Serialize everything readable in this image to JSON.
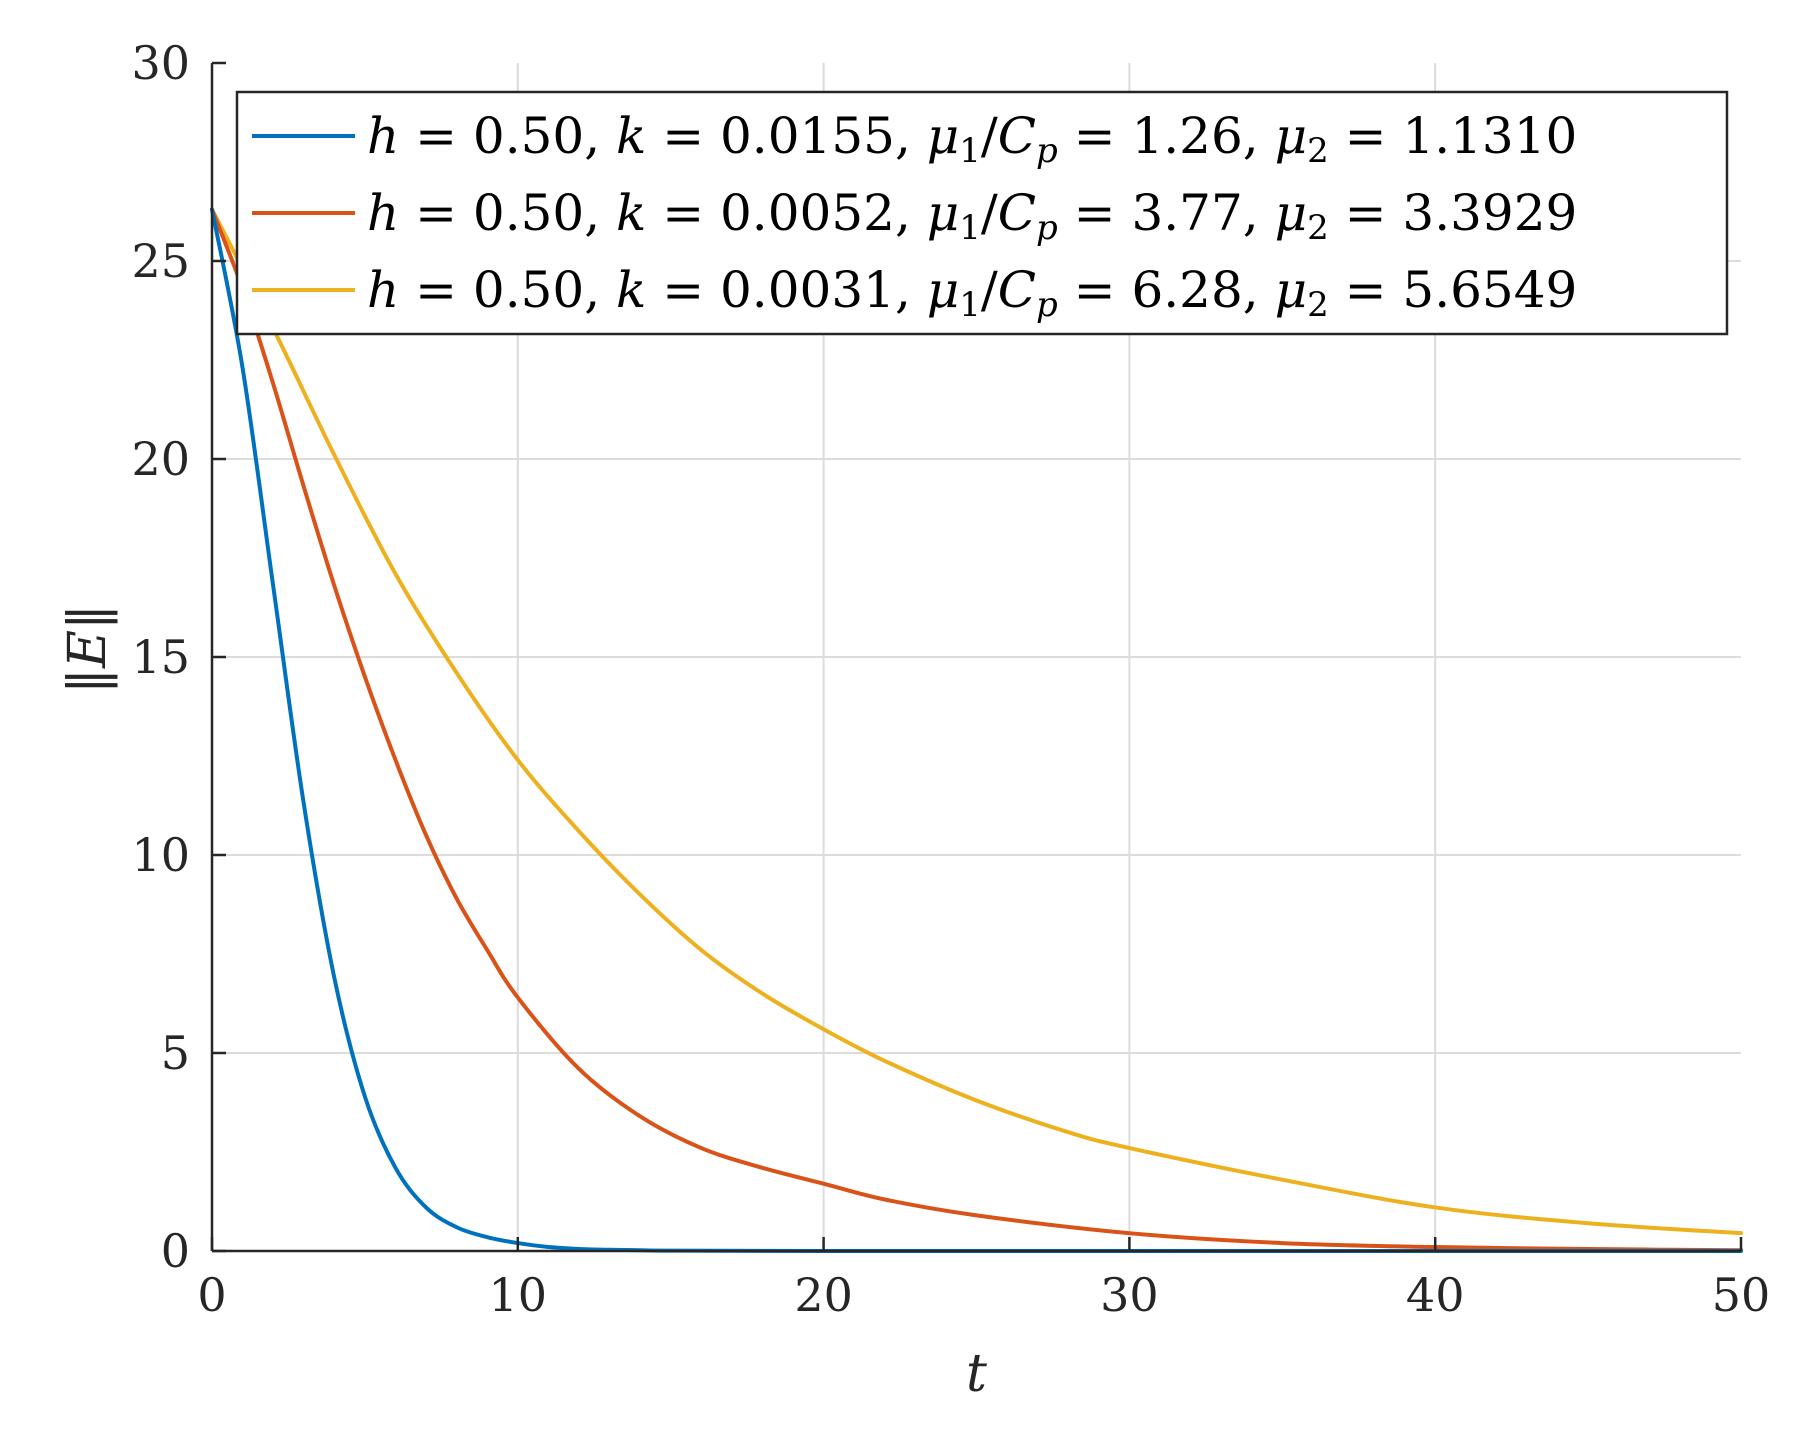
{
  "chart_data": {
    "type": "line",
    "title": "",
    "xlabel": "t",
    "ylabel": "‖E‖",
    "xlim": [
      0,
      50
    ],
    "ylim": [
      0,
      30
    ],
    "xticks": [
      0,
      10,
      20,
      30,
      40,
      50
    ],
    "yticks": [
      0,
      5,
      10,
      15,
      20,
      25,
      30
    ],
    "grid": true,
    "legend_position": "top-right",
    "series": [
      {
        "name": "h = 0.50, k = 0.0155, μ1/Cp = 1.26, μ2 = 1.1310",
        "legend": {
          "h": "0.50",
          "k": "0.0155",
          "mu1_cp": "1.26",
          "mu2": "1.1310"
        },
        "color": "#0072BD",
        "x": [
          0,
          1,
          2,
          3,
          4,
          5,
          6,
          7,
          8,
          9,
          10,
          11,
          12,
          13,
          14,
          15,
          20,
          25,
          30,
          40,
          50
        ],
        "y": [
          26.3,
          22.3,
          16.8,
          11.3,
          6.9,
          3.9,
          2.1,
          1.1,
          0.6,
          0.35,
          0.2,
          0.1,
          0.05,
          0.03,
          0.02,
          0.01,
          0,
          0,
          0,
          0,
          0
        ]
      },
      {
        "name": "h = 0.50, k = 0.0052, μ1/Cp = 3.77, μ2 = 3.3929",
        "legend": {
          "h": "0.50",
          "k": "0.0052",
          "mu1_cp": "3.77",
          "mu2": "3.3929"
        },
        "color": "#D95319",
        "x": [
          0,
          1,
          2,
          3,
          4,
          5,
          6,
          7,
          8,
          9,
          10,
          12,
          14,
          16,
          18,
          20,
          22,
          25,
          30,
          35,
          40,
          45,
          50
        ],
        "y": [
          26.3,
          24.3,
          21.9,
          19.3,
          16.8,
          14.5,
          12.4,
          10.5,
          8.9,
          7.6,
          6.4,
          4.6,
          3.4,
          2.6,
          2.1,
          1.7,
          1.3,
          0.9,
          0.45,
          0.2,
          0.1,
          0.05,
          0.02
        ]
      },
      {
        "name": "h = 0.50, k = 0.0031, μ1/Cp = 6.28, μ2 = 5.6549",
        "legend": {
          "h": "0.50",
          "k": "0.0031",
          "mu1_cp": "6.28",
          "mu2": "5.6549"
        },
        "color": "#EDB120",
        "x": [
          0,
          2,
          4,
          6,
          8,
          10,
          12,
          14,
          16,
          18,
          20,
          22,
          25,
          28,
          30,
          35,
          40,
          45,
          50
        ],
        "y": [
          26.3,
          23.3,
          20.1,
          17.1,
          14.6,
          12.4,
          10.6,
          9.0,
          7.6,
          6.5,
          5.6,
          4.8,
          3.8,
          3.0,
          2.6,
          1.8,
          1.1,
          0.7,
          0.45
        ]
      }
    ]
  }
}
